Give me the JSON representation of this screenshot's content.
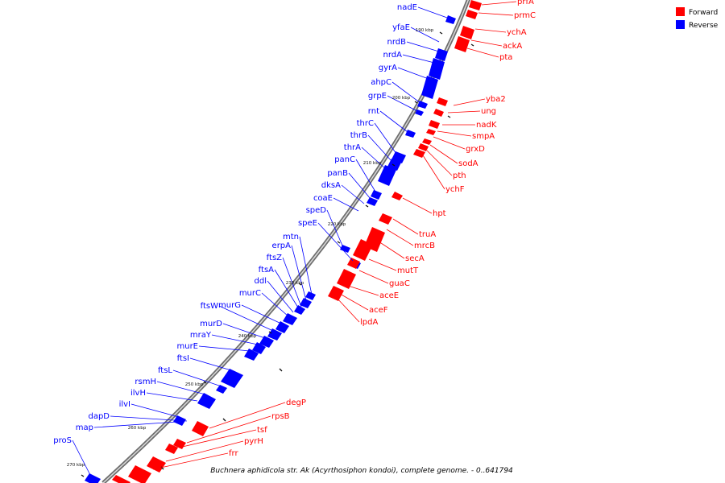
{
  "colors": {
    "forward": "#ff0000",
    "reverse": "#0000ff",
    "backbone": "#888888"
  },
  "legend": [
    {
      "label": "Forward",
      "color": "#ff0000"
    },
    {
      "label": "Reverse",
      "color": "#0000ff"
    }
  ],
  "caption": "Buchnera aphidicola str. Ak (Acyrthosiphon kondoi), complete genome. - 0..641794",
  "kbp_labels": [
    "190 kbp",
    "200 kbp",
    "210 kbp",
    "220 kbp",
    "230 kbp",
    "240 kbp",
    "250 kbp",
    "260 kbp",
    "270 kbp"
  ],
  "forward_genes": [
    "prfA",
    "prmC",
    "ychA",
    "ackA",
    "pta",
    "yba2",
    "ung",
    "nadK",
    "smpA",
    "grxD",
    "sodA",
    "pth",
    "ychF",
    "hpt",
    "truA",
    "mrcB",
    "secA",
    "mutT",
    "guaC",
    "aceE",
    "aceF",
    "lpdA",
    "degP",
    "rpsB",
    "tsf",
    "pyrH",
    "frr"
  ],
  "reverse_genes": [
    "nadE",
    "yfaE",
    "nrdB",
    "nrdA",
    "gyrA",
    "ahpC",
    "grpE",
    "rnt",
    "thrC",
    "thrB",
    "thrA",
    "panC",
    "panB",
    "dksA",
    "coaE",
    "speD",
    "speE",
    "mtn",
    "erpA",
    "ftsZ",
    "ftsA",
    "ddl",
    "murC",
    "murG",
    "ftsW",
    "murD",
    "mraY",
    "murE",
    "ftsI",
    "ftsL",
    "rsmH",
    "ilvH",
    "ilvI",
    "dapD",
    "map",
    "proS"
  ]
}
